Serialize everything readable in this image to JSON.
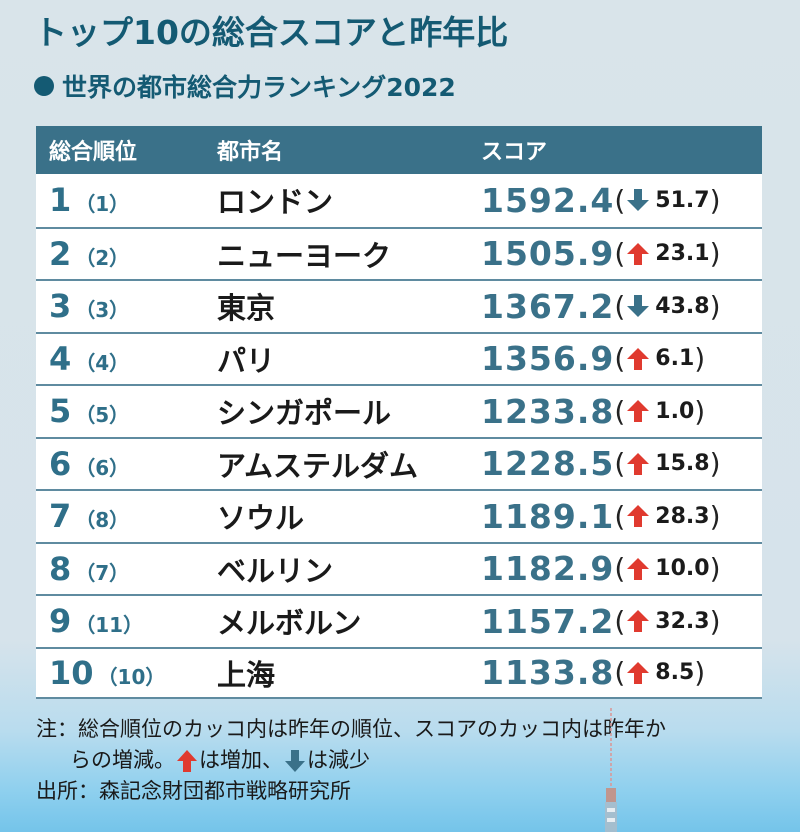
{
  "title": "トップ10の総合スコアと昨年比",
  "subtitle": "世界の都市総合力ランキング2022",
  "colors": {
    "title": "#145a73",
    "header_bg": "#3a7189",
    "score": "#3a7189",
    "up": "#e03a2f",
    "down": "#3a7189"
  },
  "table": {
    "headers": [
      "総合順位",
      "都市名",
      "スコア"
    ],
    "rows": [
      {
        "rank": "1",
        "prev": "（1）",
        "city": "ロンドン",
        "score": "1592.4",
        "dir": "down",
        "delta": "51.7"
      },
      {
        "rank": "2",
        "prev": "（2）",
        "city": "ニューヨーク",
        "score": "1505.9",
        "dir": "up",
        "delta": "23.1"
      },
      {
        "rank": "3",
        "prev": "（3）",
        "city": "東京",
        "score": "1367.2",
        "dir": "down",
        "delta": "43.8"
      },
      {
        "rank": "4",
        "prev": "（4）",
        "city": "パリ",
        "score": "1356.9",
        "dir": "up",
        "delta": "6.1"
      },
      {
        "rank": "5",
        "prev": "（5）",
        "city": "シンガポール",
        "score": "1233.8",
        "dir": "up",
        "delta": "1.0"
      },
      {
        "rank": "6",
        "prev": "（6）",
        "city": "アムステルダム",
        "score": "1228.5",
        "dir": "up",
        "delta": "15.8"
      },
      {
        "rank": "7",
        "prev": "（8）",
        "city": "ソウル",
        "score": "1189.1",
        "dir": "up",
        "delta": "28.3"
      },
      {
        "rank": "8",
        "prev": "（7）",
        "city": "ベルリン",
        "score": "1182.9",
        "dir": "up",
        "delta": "10.0"
      },
      {
        "rank": "9",
        "prev": "（11）",
        "city": "メルボルン",
        "score": "1157.2",
        "dir": "up",
        "delta": "32.3"
      },
      {
        "rank": "10",
        "prev": "（10）",
        "city": "上海",
        "score": "1133.8",
        "dir": "up",
        "delta": "8.5"
      }
    ]
  },
  "notes": {
    "line1": "注：総合順位のカッコ内は昨年の順位、スコアのカッコ内は昨年か",
    "line2_a": "らの増減。",
    "line2_b": "は増加、",
    "line2_c": "は減少",
    "source": "出所：森記念財団都市戦略研究所"
  },
  "chart_data": {
    "type": "table",
    "title": "トップ10の総合スコアと昨年比",
    "subtitle": "世界の都市総合力ランキング2022",
    "columns": [
      "総合順位",
      "昨年順位",
      "都市名",
      "スコア",
      "昨年比"
    ],
    "rows": [
      [
        1,
        1,
        "ロンドン",
        1592.4,
        -51.7
      ],
      [
        2,
        2,
        "ニューヨーク",
        1505.9,
        23.1
      ],
      [
        3,
        3,
        "東京",
        1367.2,
        -43.8
      ],
      [
        4,
        4,
        "パリ",
        1356.9,
        6.1
      ],
      [
        5,
        5,
        "シンガポール",
        1233.8,
        1.0
      ],
      [
        6,
        6,
        "アムステルダム",
        1228.5,
        15.8
      ],
      [
        7,
        8,
        "ソウル",
        1189.1,
        28.3
      ],
      [
        8,
        7,
        "ベルリン",
        1182.9,
        10.0
      ],
      [
        9,
        11,
        "メルボルン",
        1157.2,
        32.3
      ],
      [
        10,
        10,
        "上海",
        1133.8,
        8.5
      ]
    ],
    "categories": [
      "ロンドン",
      "ニューヨーク",
      "東京",
      "パリ",
      "シンガポール",
      "アムステルダム",
      "ソウル",
      "ベルリン",
      "メルボルン",
      "上海"
    ],
    "series": [
      {
        "name": "スコア",
        "values": [
          1592.4,
          1505.9,
          1367.2,
          1356.9,
          1233.8,
          1228.5,
          1189.1,
          1182.9,
          1157.2,
          1133.8
        ]
      },
      {
        "name": "昨年比",
        "values": [
          -51.7,
          23.1,
          -43.8,
          6.1,
          1.0,
          15.8,
          28.3,
          10.0,
          32.3,
          8.5
        ]
      }
    ],
    "annotations": [
      "注：総合順位のカッコ内は昨年の順位、スコアのカッコ内は昨年からの増減。↑は増加、↓は減少",
      "出所：森記念財団都市戦略研究所"
    ]
  }
}
